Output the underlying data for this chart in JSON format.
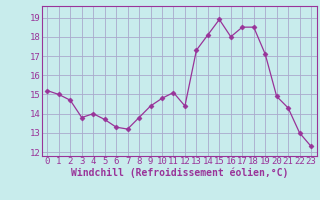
{
  "x": [
    0,
    1,
    2,
    3,
    4,
    5,
    6,
    7,
    8,
    9,
    10,
    11,
    12,
    13,
    14,
    15,
    16,
    17,
    18,
    19,
    20,
    21,
    22,
    23
  ],
  "y": [
    15.2,
    15.0,
    14.7,
    13.8,
    14.0,
    13.7,
    13.3,
    13.2,
    13.8,
    14.4,
    14.8,
    15.1,
    14.4,
    17.3,
    18.1,
    18.9,
    18.0,
    18.5,
    18.5,
    17.1,
    14.9,
    14.3,
    13.0,
    12.3
  ],
  "line_color": "#993399",
  "marker": "D",
  "marker_size": 2.5,
  "bg_color": "#c8ecec",
  "grid_color": "#aaaacc",
  "xlabel": "Windchill (Refroidissement éolien,°C)",
  "tick_color": "#993399",
  "ylim": [
    11.8,
    19.6
  ],
  "xlim": [
    -0.5,
    23.5
  ],
  "yticks": [
    12,
    13,
    14,
    15,
    16,
    17,
    18,
    19
  ],
  "xticks": [
    0,
    1,
    2,
    3,
    4,
    5,
    6,
    7,
    8,
    9,
    10,
    11,
    12,
    13,
    14,
    15,
    16,
    17,
    18,
    19,
    20,
    21,
    22,
    23
  ],
  "font_size": 6.5,
  "label_font_size": 7.0
}
